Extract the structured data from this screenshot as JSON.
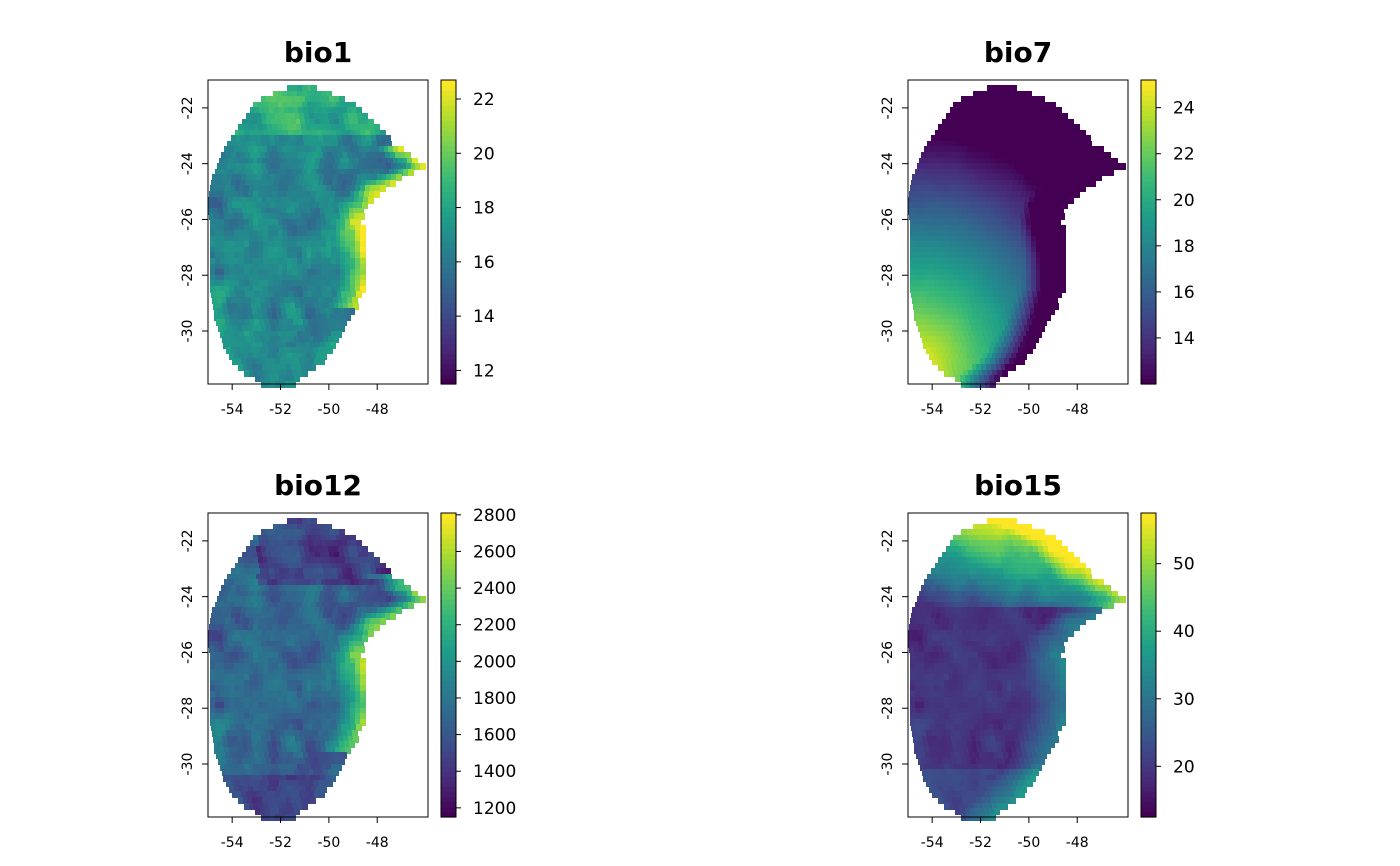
{
  "panels": [
    {
      "id": "bio1",
      "title": "bio1",
      "legend": {
        "labels": [
          "12",
          "14",
          "16",
          "18",
          "20",
          "22"
        ],
        "min": 11.5,
        "max": 22.7
      },
      "pattern": "temperature"
    },
    {
      "id": "bio7",
      "title": "bio7",
      "legend": {
        "labels": [
          "14",
          "16",
          "18",
          "20",
          "22",
          "24"
        ],
        "min": 12.0,
        "max": 25.2
      },
      "pattern": "gradient"
    },
    {
      "id": "bio12",
      "title": "bio12",
      "legend": {
        "labels": [
          "1200",
          "1400",
          "1600",
          "1800",
          "2000",
          "2200",
          "2400",
          "2600",
          "2800"
        ],
        "min": 1150,
        "max": 2810
      },
      "pattern": "precip"
    },
    {
      "id": "bio15",
      "title": "bio15",
      "legend": {
        "labels": [
          "20",
          "30",
          "40",
          "50"
        ],
        "min": 12.5,
        "max": 57.5
      },
      "pattern": "seasonality"
    }
  ],
  "axes": {
    "x_ticks": [
      "-54",
      "-52",
      "-50",
      "-48"
    ],
    "y_ticks": [
      "-22",
      "-24",
      "-26",
      "-28",
      "-30"
    ]
  },
  "colors": {
    "viridis": [
      "#440154",
      "#482878",
      "#3e4a89",
      "#31688e",
      "#26828e",
      "#1f9e89",
      "#35b779",
      "#6ece58",
      "#b5de2b",
      "#fde725"
    ]
  }
}
